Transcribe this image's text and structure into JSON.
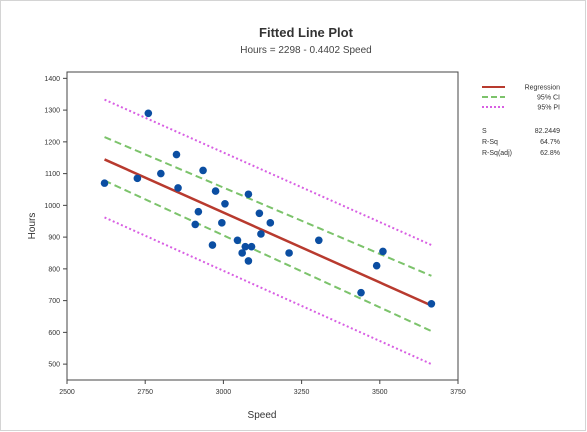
{
  "chart_data": {
    "type": "scatter",
    "title": "Fitted Line Plot",
    "subtitle": "Hours = 2298 - 0.4402 Speed",
    "xlabel": "Speed",
    "ylabel": "Hours",
    "xlim": [
      2500,
      3750
    ],
    "ylim": [
      450,
      1420
    ],
    "xticks": [
      2500,
      2750,
      3000,
      3250,
      3500,
      3750
    ],
    "yticks": [
      500,
      600,
      700,
      800,
      900,
      1000,
      1100,
      1200,
      1300,
      1400
    ],
    "x_range": [
      2620,
      3665
    ],
    "regression": {
      "intercept": 2298,
      "slope": -0.4402
    },
    "ci": {
      "upper": [
        [
          2620,
          1215
        ],
        [
          3665,
          778
        ]
      ],
      "lower": [
        [
          2620,
          1078
        ],
        [
          3665,
          604
        ]
      ]
    },
    "pi": {
      "upper": [
        [
          2620,
          1333
        ],
        [
          3665,
          875
        ]
      ],
      "lower": [
        [
          2620,
          962
        ],
        [
          3665,
          500
        ]
      ]
    },
    "points": [
      {
        "x": 2620,
        "y": 1070
      },
      {
        "x": 2725,
        "y": 1085
      },
      {
        "x": 2760,
        "y": 1290
      },
      {
        "x": 2800,
        "y": 1100
      },
      {
        "x": 2850,
        "y": 1160
      },
      {
        "x": 2855,
        "y": 1055
      },
      {
        "x": 2910,
        "y": 940
      },
      {
        "x": 2920,
        "y": 980
      },
      {
        "x": 2935,
        "y": 1110
      },
      {
        "x": 2965,
        "y": 875
      },
      {
        "x": 2975,
        "y": 1045
      },
      {
        "x": 2995,
        "y": 945
      },
      {
        "x": 3005,
        "y": 1005
      },
      {
        "x": 3045,
        "y": 890
      },
      {
        "x": 3060,
        "y": 850
      },
      {
        "x": 3070,
        "y": 870
      },
      {
        "x": 3080,
        "y": 825
      },
      {
        "x": 3080,
        "y": 1035
      },
      {
        "x": 3090,
        "y": 870
      },
      {
        "x": 3115,
        "y": 975
      },
      {
        "x": 3120,
        "y": 910
      },
      {
        "x": 3150,
        "y": 945
      },
      {
        "x": 3210,
        "y": 850
      },
      {
        "x": 3305,
        "y": 890
      },
      {
        "x": 3440,
        "y": 725
      },
      {
        "x": 3490,
        "y": 810
      },
      {
        "x": 3510,
        "y": 855
      },
      {
        "x": 3665,
        "y": 690
      }
    ],
    "legend": {
      "placement": "right",
      "entries": [
        {
          "label": "Regression",
          "color": "#b83a2e",
          "style": "solid"
        },
        {
          "label": "95% CI",
          "color": "#7cc36b",
          "style": "dashed"
        },
        {
          "label": "95% PI",
          "color": "#d85fe3",
          "style": "dotted"
        }
      ]
    },
    "stats": [
      {
        "label": "S",
        "value": "82.2449"
      },
      {
        "label": "R-Sq",
        "value": "64.7%"
      },
      {
        "label": "R-Sq(adj)",
        "value": "62.8%"
      }
    ],
    "colors": {
      "point": "#0b4ea2",
      "regression": "#b83a2e",
      "ci": "#7cc36b",
      "pi": "#d85fe3"
    }
  }
}
